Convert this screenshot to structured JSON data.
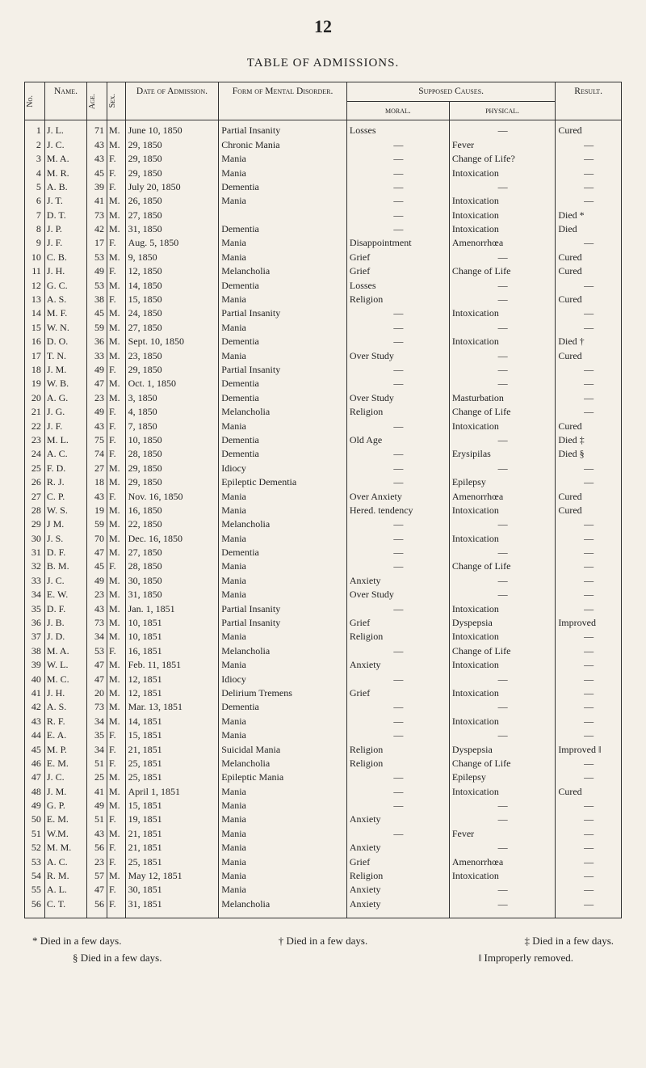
{
  "page_number": "12",
  "table_title": "TABLE OF ADMISSIONS.",
  "headers": {
    "no": "No.",
    "name": "Name.",
    "age": "Age.",
    "sex": "Sex.",
    "date_of_admission": "Date of Admission.",
    "form_of_disorder": "Form of Mental Disorder.",
    "supposed_causes": "Supposed Causes.",
    "moral": "moral.",
    "physical": "physical.",
    "result": "Result."
  },
  "rows": [
    {
      "no": "1",
      "name": "J. L.",
      "age": "71",
      "sex": "M.",
      "adm": "June 10, 1850",
      "dis": "Partial Insanity",
      "moral": "Losses",
      "phys": "—",
      "res": "Cured"
    },
    {
      "no": "2",
      "name": "J. C.",
      "age": "43",
      "sex": "M.",
      "adm": "29, 1850",
      "dis": "Chronic Mania",
      "moral": "—",
      "phys": "Fever",
      "res": "—"
    },
    {
      "no": "3",
      "name": "M. A.",
      "age": "43",
      "sex": "F.",
      "adm": "29, 1850",
      "dis": "Mania",
      "moral": "—",
      "phys": "Change of Life?",
      "res": "—"
    },
    {
      "no": "4",
      "name": "M. R.",
      "age": "45",
      "sex": "F.",
      "adm": "29, 1850",
      "dis": "Mania",
      "moral": "—",
      "phys": "Intoxication",
      "res": "—"
    },
    {
      "no": "5",
      "name": "A. B.",
      "age": "39",
      "sex": "F.",
      "adm": "July 20, 1850",
      "dis": "Dementia",
      "moral": "—",
      "phys": "—",
      "res": "—"
    },
    {
      "no": "6",
      "name": "J. T.",
      "age": "41",
      "sex": "M.",
      "adm": "26, 1850",
      "dis": "Mania",
      "moral": "—",
      "phys": "Intoxication",
      "res": "—"
    },
    {
      "no": "7",
      "name": "D. T.",
      "age": "73",
      "sex": "M.",
      "adm": "27, 1850",
      "dis": "",
      "moral": "—",
      "phys": "Intoxication",
      "res": "Died *"
    },
    {
      "no": "8",
      "name": "J. P.",
      "age": "42",
      "sex": "M.",
      "adm": "31, 1850",
      "dis": "Dementia",
      "moral": "—",
      "phys": "Intoxication",
      "res": "Died"
    },
    {
      "no": "9",
      "name": "J. F.",
      "age": "17",
      "sex": "F.",
      "adm": "Aug. 5, 1850",
      "dis": "Mania",
      "moral": "Disappointment",
      "phys": "Amenorrhœa",
      "res": "—"
    },
    {
      "no": "10",
      "name": "C. B.",
      "age": "53",
      "sex": "M.",
      "adm": "9, 1850",
      "dis": "Mania",
      "moral": "Grief",
      "phys": "—",
      "res": "Cured"
    },
    {
      "no": "11",
      "name": "J. H.",
      "age": "49",
      "sex": "F.",
      "adm": "12, 1850",
      "dis": "Melancholia",
      "moral": "Grief",
      "phys": "Change of Life",
      "res": "Cured"
    },
    {
      "no": "12",
      "name": "G. C.",
      "age": "53",
      "sex": "M.",
      "adm": "14, 1850",
      "dis": "Dementia",
      "moral": "Losses",
      "phys": "—",
      "res": "—"
    },
    {
      "no": "13",
      "name": "A. S.",
      "age": "38",
      "sex": "F.",
      "adm": "15, 1850",
      "dis": "Mania",
      "moral": "Religion",
      "phys": "—",
      "res": "Cured"
    },
    {
      "no": "14",
      "name": "M. F.",
      "age": "45",
      "sex": "M.",
      "adm": "24, 1850",
      "dis": "Partial Insanity",
      "moral": "—",
      "phys": "Intoxication",
      "res": "—"
    },
    {
      "no": "15",
      "name": "W. N.",
      "age": "59",
      "sex": "M.",
      "adm": "27, 1850",
      "dis": "Mania",
      "moral": "—",
      "phys": "—",
      "res": "—"
    },
    {
      "no": "16",
      "name": "D. O.",
      "age": "36",
      "sex": "M.",
      "adm": "Sept. 10, 1850",
      "dis": "Dementia",
      "moral": "—",
      "phys": "Intoxication",
      "res": "Died †"
    },
    {
      "no": "17",
      "name": "T. N.",
      "age": "33",
      "sex": "M.",
      "adm": "23, 1850",
      "dis": "Mania",
      "moral": "Over Study",
      "phys": "—",
      "res": "Cured"
    },
    {
      "no": "18",
      "name": "J. M.",
      "age": "49",
      "sex": "F.",
      "adm": "29, 1850",
      "dis": "Partial Insanity",
      "moral": "—",
      "phys": "—",
      "res": "—"
    },
    {
      "no": "19",
      "name": "W. B.",
      "age": "47",
      "sex": "M.",
      "adm": "Oct. 1, 1850",
      "dis": "Dementia",
      "moral": "—",
      "phys": "—",
      "res": "—"
    },
    {
      "no": "20",
      "name": "A. G.",
      "age": "23",
      "sex": "M.",
      "adm": "3, 1850",
      "dis": "Dementia",
      "moral": "Over Study",
      "phys": "Masturbation",
      "res": "—"
    },
    {
      "no": "21",
      "name": "J. G.",
      "age": "49",
      "sex": "F.",
      "adm": "4, 1850",
      "dis": "Melancholia",
      "moral": "Religion",
      "phys": "Change of Life",
      "res": "—"
    },
    {
      "no": "22",
      "name": "J. F.",
      "age": "43",
      "sex": "F.",
      "adm": "7, 1850",
      "dis": "Mania",
      "moral": "—",
      "phys": "Intoxication",
      "res": "Cured"
    },
    {
      "no": "23",
      "name": "M. L.",
      "age": "75",
      "sex": "F.",
      "adm": "10, 1850",
      "dis": "Dementia",
      "moral": "Old Age",
      "phys": "—",
      "res": "Died ‡"
    },
    {
      "no": "24",
      "name": "A. C.",
      "age": "74",
      "sex": "F.",
      "adm": "28, 1850",
      "dis": "Dementia",
      "moral": "—",
      "phys": "Erysipilas",
      "res": "Died §"
    },
    {
      "no": "25",
      "name": "F. D.",
      "age": "27",
      "sex": "M.",
      "adm": "29, 1850",
      "dis": "Idiocy",
      "moral": "—",
      "phys": "—",
      "res": "—"
    },
    {
      "no": "26",
      "name": "R. J.",
      "age": "18",
      "sex": "M.",
      "adm": "29, 1850",
      "dis": "Epileptic Dementia",
      "moral": "—",
      "phys": "Epilepsy",
      "res": "—"
    },
    {
      "no": "27",
      "name": "C. P.",
      "age": "43",
      "sex": "F.",
      "adm": "Nov. 16, 1850",
      "dis": "Mania",
      "moral": "Over Anxiety",
      "phys": "Amenorrhœa",
      "res": "Cured"
    },
    {
      "no": "28",
      "name": "W. S.",
      "age": "19",
      "sex": "M.",
      "adm": "16, 1850",
      "dis": "Mania",
      "moral": "Hered. tendency",
      "phys": "Intoxication",
      "res": "Cured"
    },
    {
      "no": "29",
      "name": "J M.",
      "age": "59",
      "sex": "M.",
      "adm": "22, 1850",
      "dis": "Melancholia",
      "moral": "—",
      "phys": "—",
      "res": "—"
    },
    {
      "no": "30",
      "name": "J. S.",
      "age": "70",
      "sex": "M.",
      "adm": "Dec. 16, 1850",
      "dis": "Mania",
      "moral": "—",
      "phys": "Intoxication",
      "res": "—"
    },
    {
      "no": "31",
      "name": "D. F.",
      "age": "47",
      "sex": "M.",
      "adm": "27, 1850",
      "dis": "Dementia",
      "moral": "—",
      "phys": "—",
      "res": "—"
    },
    {
      "no": "32",
      "name": "B. M.",
      "age": "45",
      "sex": "F.",
      "adm": "28, 1850",
      "dis": "Mania",
      "moral": "—",
      "phys": "Change of Life",
      "res": "—"
    },
    {
      "no": "33",
      "name": "J. C.",
      "age": "49",
      "sex": "M.",
      "adm": "30, 1850",
      "dis": "Mania",
      "moral": "Anxiety",
      "phys": "—",
      "res": "—"
    },
    {
      "no": "34",
      "name": "E. W.",
      "age": "23",
      "sex": "M.",
      "adm": "31, 1850",
      "dis": "Mania",
      "moral": "Over Study",
      "phys": "—",
      "res": "—"
    },
    {
      "no": "35",
      "name": "D. F.",
      "age": "43",
      "sex": "M.",
      "adm": "Jan. 1, 1851",
      "dis": "Partial Insanity",
      "moral": "—",
      "phys": "Intoxication",
      "res": "—"
    },
    {
      "no": "36",
      "name": "J. B.",
      "age": "73",
      "sex": "M.",
      "adm": "10, 1851",
      "dis": "Partial Insanity",
      "moral": "Grief",
      "phys": "Dyspepsia",
      "res": "Improved"
    },
    {
      "no": "37",
      "name": "J. D.",
      "age": "34",
      "sex": "M.",
      "adm": "10, 1851",
      "dis": "Mania",
      "moral": "Religion",
      "phys": "Intoxication",
      "res": "—"
    },
    {
      "no": "38",
      "name": "M. A.",
      "age": "53",
      "sex": "F.",
      "adm": "16, 1851",
      "dis": "Melancholia",
      "moral": "—",
      "phys": "Change of Life",
      "res": "—"
    },
    {
      "no": "39",
      "name": "W. L.",
      "age": "47",
      "sex": "M.",
      "adm": "Feb. 11, 1851",
      "dis": "Mania",
      "moral": "Anxiety",
      "phys": "Intoxication",
      "res": "—"
    },
    {
      "no": "40",
      "name": "M. C.",
      "age": "47",
      "sex": "M.",
      "adm": "12, 1851",
      "dis": "Idiocy",
      "moral": "—",
      "phys": "—",
      "res": "—"
    },
    {
      "no": "41",
      "name": "J. H.",
      "age": "20",
      "sex": "M.",
      "adm": "12, 1851",
      "dis": "Delirium Tremens",
      "moral": "Grief",
      "phys": "Intoxication",
      "res": "—"
    },
    {
      "no": "42",
      "name": "A. S.",
      "age": "73",
      "sex": "M.",
      "adm": "Mar. 13, 1851",
      "dis": "Dementia",
      "moral": "—",
      "phys": "—",
      "res": "—"
    },
    {
      "no": "43",
      "name": "R. F.",
      "age": "34",
      "sex": "M.",
      "adm": "14, 1851",
      "dis": "Mania",
      "moral": "—",
      "phys": "Intoxication",
      "res": "—"
    },
    {
      "no": "44",
      "name": "E. A.",
      "age": "35",
      "sex": "F.",
      "adm": "15, 1851",
      "dis": "Mania",
      "moral": "—",
      "phys": "—",
      "res": "—"
    },
    {
      "no": "45",
      "name": "M. P.",
      "age": "34",
      "sex": "F.",
      "adm": "21, 1851",
      "dis": "Suicidal Mania",
      "moral": "Religion",
      "phys": "Dyspepsia",
      "res": "Improved ‖"
    },
    {
      "no": "46",
      "name": "E. M.",
      "age": "51",
      "sex": "F.",
      "adm": "25, 1851",
      "dis": "Melancholia",
      "moral": "Religion",
      "phys": "Change of Life",
      "res": "—"
    },
    {
      "no": "47",
      "name": "J. C.",
      "age": "25",
      "sex": "M.",
      "adm": "25, 1851",
      "dis": "Epileptic Mania",
      "moral": "—",
      "phys": "Epilepsy",
      "res": "—"
    },
    {
      "no": "48",
      "name": "J. M.",
      "age": "41",
      "sex": "M.",
      "adm": "April 1, 1851",
      "dis": "Mania",
      "moral": "—",
      "phys": "Intoxication",
      "res": "Cured"
    },
    {
      "no": "49",
      "name": "G. P.",
      "age": "49",
      "sex": "M.",
      "adm": "15, 1851",
      "dis": "Mania",
      "moral": "—",
      "phys": "—",
      "res": "—"
    },
    {
      "no": "50",
      "name": "E. M.",
      "age": "51",
      "sex": "F.",
      "adm": "19, 1851",
      "dis": "Mania",
      "moral": "Anxiety",
      "phys": "—",
      "res": "—"
    },
    {
      "no": "51",
      "name": "W.M.",
      "age": "43",
      "sex": "M.",
      "adm": "21, 1851",
      "dis": "Mania",
      "moral": "—",
      "phys": "Fever",
      "res": "—"
    },
    {
      "no": "52",
      "name": "M. M.",
      "age": "56",
      "sex": "F.",
      "adm": "21, 1851",
      "dis": "Mania",
      "moral": "Anxiety",
      "phys": "—",
      "res": "—"
    },
    {
      "no": "53",
      "name": "A. C.",
      "age": "23",
      "sex": "F.",
      "adm": "25, 1851",
      "dis": "Mania",
      "moral": "Grief",
      "phys": "Amenorrhœa",
      "res": "—"
    },
    {
      "no": "54",
      "name": "R. M.",
      "age": "57",
      "sex": "M.",
      "adm": "May 12, 1851",
      "dis": "Mania",
      "moral": "Religion",
      "phys": "Intoxication",
      "res": "—"
    },
    {
      "no": "55",
      "name": "A. L.",
      "age": "47",
      "sex": "F.",
      "adm": "30, 1851",
      "dis": "Mania",
      "moral": "Anxiety",
      "phys": "—",
      "res": "—"
    },
    {
      "no": "56",
      "name": "C. T.",
      "age": "56",
      "sex": "F.",
      "adm": "31, 1851",
      "dis": "Melancholia",
      "moral": "Anxiety",
      "phys": "—",
      "res": "—"
    }
  ],
  "footnotes": {
    "a": "* Died in a few days.",
    "b": "† Died in a few days.",
    "c": "‡ Died in a few days.",
    "d": "§ Died in a few days.",
    "e": "‖ Improperly removed."
  },
  "style": {
    "page_bg": "#f4f0e8",
    "text_color": "#222",
    "border_color": "#333",
    "body_font": "Times New Roman",
    "body_fontsize_pt": 12,
    "pagenum_fontsize_pt": 22,
    "title_fontsize_pt": 15
  }
}
